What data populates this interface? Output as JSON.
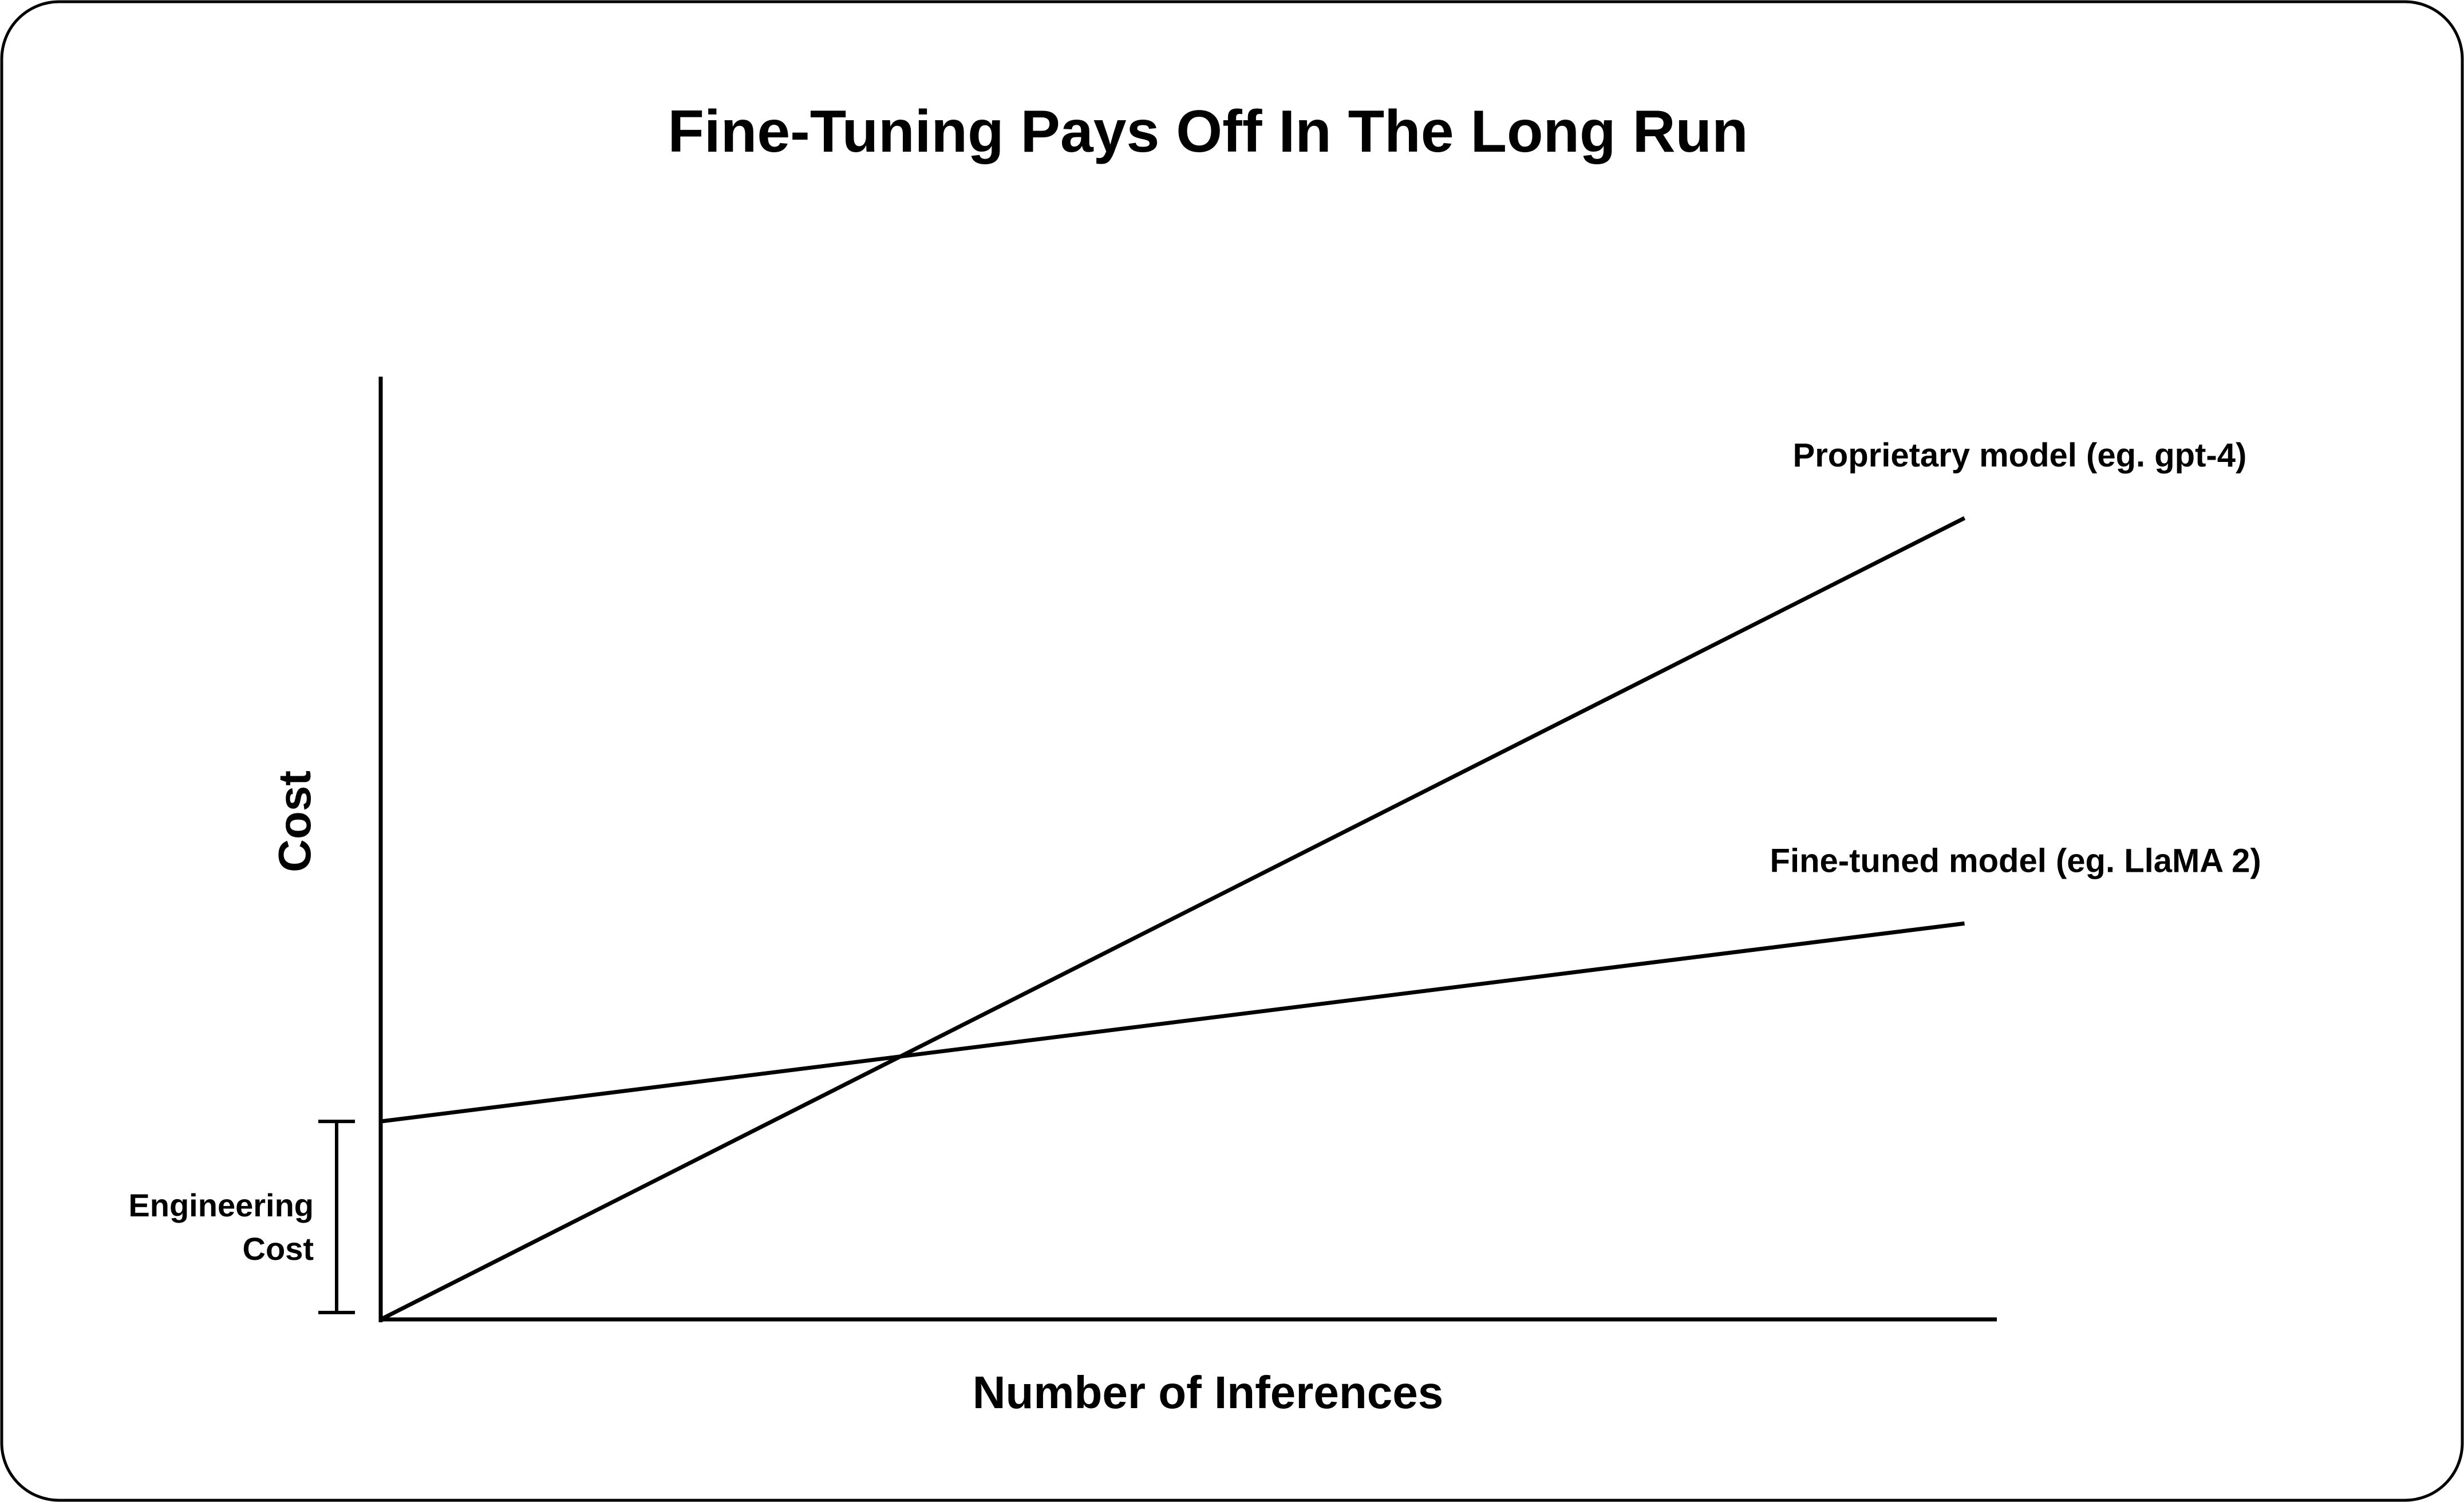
{
  "chart_data": {
    "type": "line",
    "title": "Fine-Tuning Pays Off In The Long Run",
    "xlabel": "Number of Inferences",
    "ylabel": "Cost",
    "xlim": [
      0,
      10
    ],
    "ylim": [
      0,
      10
    ],
    "grid": false,
    "legend": "none",
    "series": [
      {
        "name": "Proprietary model (eg. gpt-4)",
        "x": [
          0,
          9.8
        ],
        "y": [
          0,
          8.5
        ]
      },
      {
        "name": "Fine-tuned model (eg. LlaMA 2)",
        "x": [
          0,
          9.8
        ],
        "y": [
          2.1,
          4.2
        ]
      }
    ],
    "annotations": [
      {
        "label_lines": [
          "Engineering",
          "Cost"
        ],
        "y_range": [
          0,
          2.1
        ]
      }
    ]
  },
  "colors": {
    "ink": "#000000",
    "background": "#ffffff"
  }
}
